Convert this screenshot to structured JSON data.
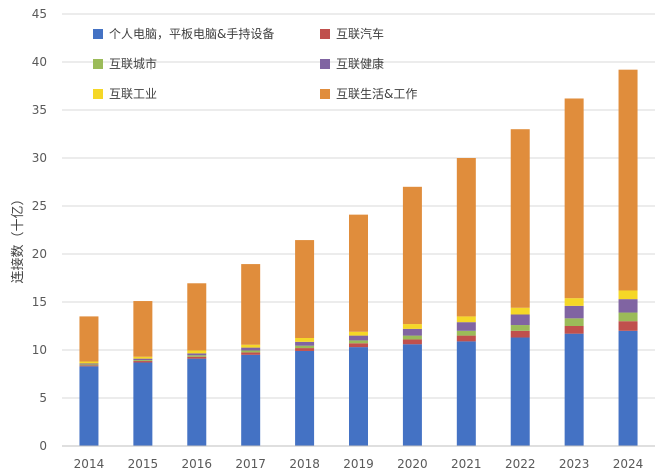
{
  "chart_data": {
    "type": "bar",
    "stacked": true,
    "title": "",
    "xlabel": "",
    "ylabel": "连接数（十亿）",
    "ylim": [
      0,
      45
    ],
    "yticks": [
      0,
      5,
      10,
      15,
      20,
      25,
      30,
      35,
      40,
      45
    ],
    "grid": true,
    "legend_position": "top-left",
    "categories": [
      "2014",
      "2015",
      "2016",
      "2017",
      "2018",
      "2019",
      "2020",
      "2021",
      "2022",
      "2023",
      "2024"
    ],
    "series": [
      {
        "name": "个人电脑，平板电脑&手持设备",
        "color": "#4472C4",
        "values": [
          8.3,
          8.7,
          9.1,
          9.5,
          9.9,
          10.3,
          10.6,
          10.9,
          11.3,
          11.7,
          12.0
        ]
      },
      {
        "name": "互联汽车",
        "color": "#C0504D",
        "values": [
          0.1,
          0.15,
          0.2,
          0.25,
          0.3,
          0.4,
          0.5,
          0.6,
          0.7,
          0.8,
          1.0
        ]
      },
      {
        "name": "互联城市",
        "color": "#9BBB59",
        "values": [
          0.1,
          0.1,
          0.15,
          0.2,
          0.25,
          0.3,
          0.4,
          0.5,
          0.6,
          0.8,
          0.9
        ]
      },
      {
        "name": "互联健康",
        "color": "#8064A2",
        "values": [
          0.1,
          0.15,
          0.2,
          0.3,
          0.4,
          0.5,
          0.7,
          0.9,
          1.1,
          1.3,
          1.4
        ]
      },
      {
        "name": "互联工业",
        "color": "#F5D727",
        "values": [
          0.2,
          0.2,
          0.3,
          0.3,
          0.4,
          0.4,
          0.5,
          0.6,
          0.7,
          0.8,
          0.9
        ]
      },
      {
        "name": "互联生活&工作",
        "color": "#E08D3C",
        "values": [
          4.7,
          5.8,
          7.0,
          8.4,
          10.2,
          12.2,
          14.3,
          16.5,
          18.6,
          20.8,
          23.0
        ]
      }
    ]
  }
}
